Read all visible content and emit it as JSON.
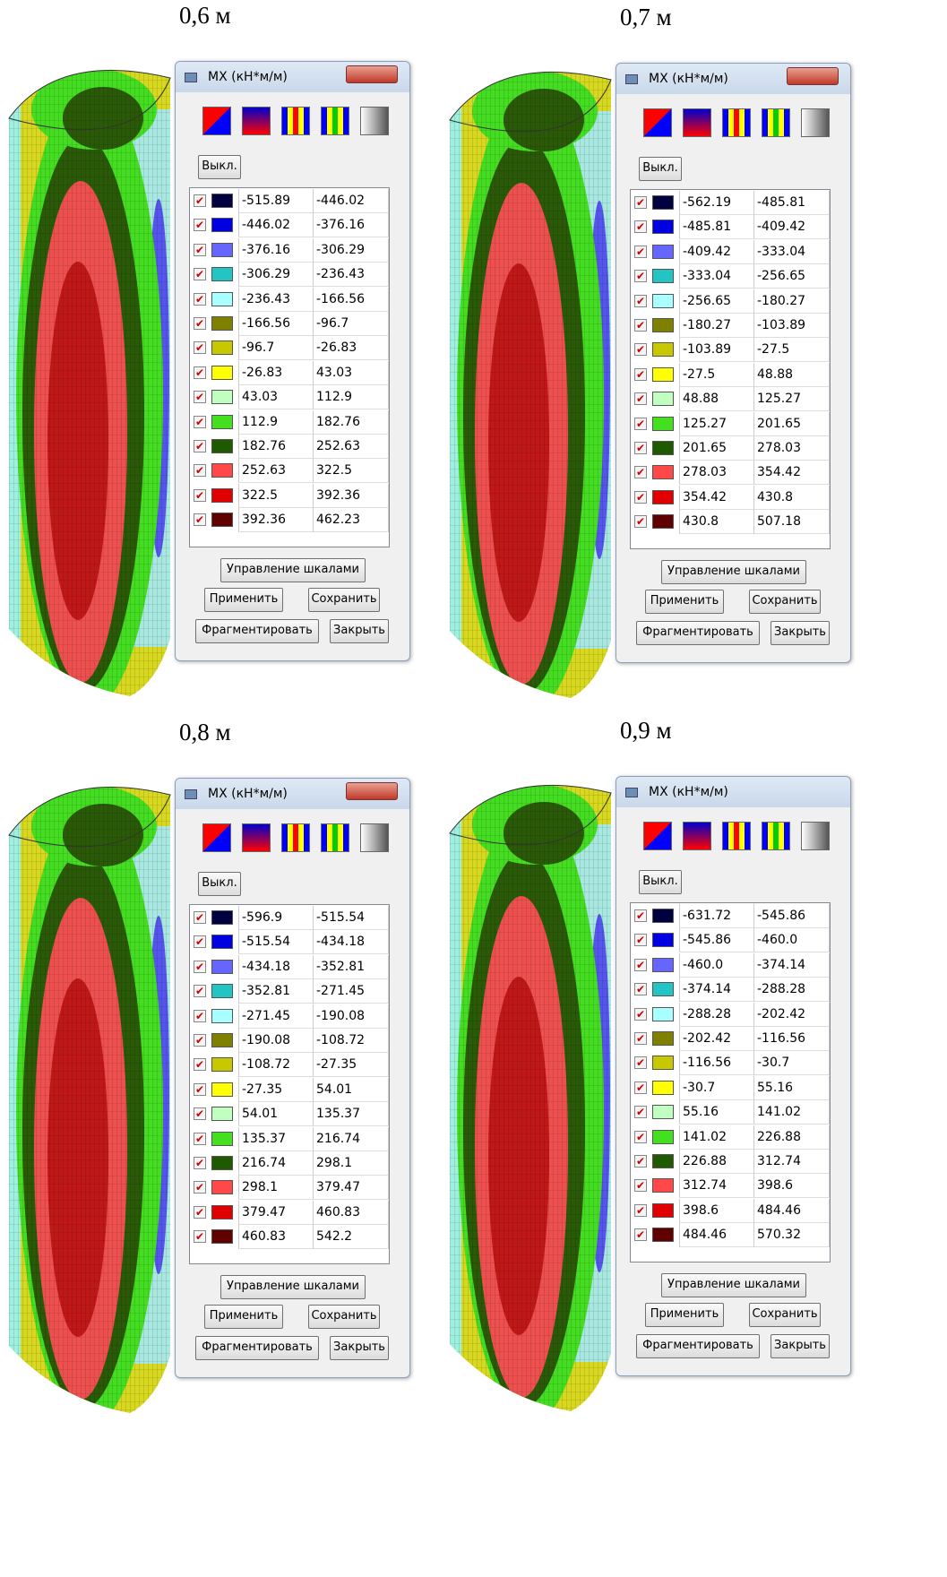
{
  "panels": [
    {
      "caption": "0,6 м",
      "dialog": {
        "title": "MX (кН*м/м)",
        "off_button": "Выкл.",
        "rows": [
          [
            "-515.89",
            "-446.02"
          ],
          [
            "-446.02",
            "-376.16"
          ],
          [
            "-376.16",
            "-306.29"
          ],
          [
            "-306.29",
            "-236.43"
          ],
          [
            "-236.43",
            "-166.56"
          ],
          [
            "-166.56",
            "-96.7"
          ],
          [
            "-96.7",
            "-26.83"
          ],
          [
            "-26.83",
            "43.03"
          ],
          [
            "43.03",
            "112.9"
          ],
          [
            "112.9",
            "182.76"
          ],
          [
            "182.76",
            "252.63"
          ],
          [
            "252.63",
            "322.5"
          ],
          [
            "322.5",
            "392.36"
          ],
          [
            "392.36",
            "462.23"
          ]
        ],
        "scales_button": "Управление шкалами",
        "apply_button": "Применить",
        "save_button": "Сохранить",
        "fragment_button": "Фрагментировать",
        "close_button": "Закрыть"
      }
    },
    {
      "caption": "0,7 м",
      "dialog": {
        "title": "MX (кН*м/м)",
        "off_button": "Выкл.",
        "rows": [
          [
            "-562.19",
            "-485.81"
          ],
          [
            "-485.81",
            "-409.42"
          ],
          [
            "-409.42",
            "-333.04"
          ],
          [
            "-333.04",
            "-256.65"
          ],
          [
            "-256.65",
            "-180.27"
          ],
          [
            "-180.27",
            "-103.89"
          ],
          [
            "-103.89",
            "-27.5"
          ],
          [
            "-27.5",
            "48.88"
          ],
          [
            "48.88",
            "125.27"
          ],
          [
            "125.27",
            "201.65"
          ],
          [
            "201.65",
            "278.03"
          ],
          [
            "278.03",
            "354.42"
          ],
          [
            "354.42",
            "430.8"
          ],
          [
            "430.8",
            "507.18"
          ]
        ],
        "scales_button": "Управление шкалами",
        "apply_button": "Применить",
        "save_button": "Сохранить",
        "fragment_button": "Фрагментировать",
        "close_button": "Закрыть"
      }
    },
    {
      "caption": "0,8 м",
      "dialog": {
        "title": "MX (кН*м/м)",
        "off_button": "Выкл.",
        "rows": [
          [
            "-596.9",
            "-515.54"
          ],
          [
            "-515.54",
            "-434.18"
          ],
          [
            "-434.18",
            "-352.81"
          ],
          [
            "-352.81",
            "-271.45"
          ],
          [
            "-271.45",
            "-190.08"
          ],
          [
            "-190.08",
            "-108.72"
          ],
          [
            "-108.72",
            "-27.35"
          ],
          [
            "-27.35",
            "54.01"
          ],
          [
            "54.01",
            "135.37"
          ],
          [
            "135.37",
            "216.74"
          ],
          [
            "216.74",
            "298.1"
          ],
          [
            "298.1",
            "379.47"
          ],
          [
            "379.47",
            "460.83"
          ],
          [
            "460.83",
            "542.2"
          ]
        ],
        "scales_button": "Управление шкалами",
        "apply_button": "Применить",
        "save_button": "Сохранить",
        "fragment_button": "Фрагментировать",
        "close_button": "Закрыть"
      }
    },
    {
      "caption": "0,9 м",
      "dialog": {
        "title": "MX (кН*м/м)",
        "off_button": "Выкл.",
        "rows": [
          [
            "-631.72",
            "-545.86"
          ],
          [
            "-545.86",
            "-460.0"
          ],
          [
            "-460.0",
            "-374.14"
          ],
          [
            "-374.14",
            "-288.28"
          ],
          [
            "-288.28",
            "-202.42"
          ],
          [
            "-202.42",
            "-116.56"
          ],
          [
            "-116.56",
            "-30.7"
          ],
          [
            "-30.7",
            "55.16"
          ],
          [
            "55.16",
            "141.02"
          ],
          [
            "141.02",
            "226.88"
          ],
          [
            "226.88",
            "312.74"
          ],
          [
            "312.74",
            "398.6"
          ],
          [
            "398.6",
            "484.46"
          ],
          [
            "484.46",
            "570.32"
          ]
        ],
        "scales_button": "Управление шкалами",
        "apply_button": "Применить",
        "save_button": "Сохранить",
        "fragment_button": "Фрагментировать",
        "close_button": "Закрыть"
      }
    }
  ]
}
